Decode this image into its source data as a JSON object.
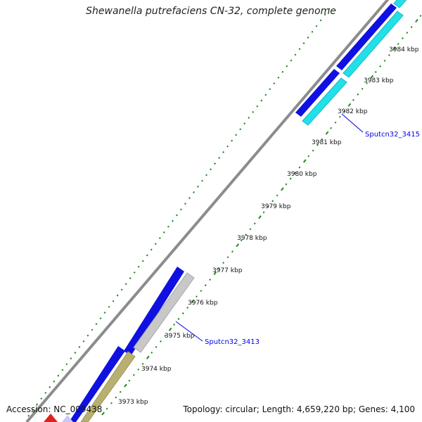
{
  "title": "Shewanella putrefaciens CN-32, complete genome",
  "accession": "Accession: NC_009438",
  "summary": "Topology: circular; Length: 4,659,220 bp; Genes: 4,100",
  "scale": {
    "unit": "kbp",
    "labeled_kbp": [
      3973,
      3974,
      3975,
      3976,
      3977,
      3978,
      3979,
      3980,
      3981,
      3982,
      3983,
      3984
    ]
  },
  "gene_labels": [
    {
      "text": "Sputcn32_3415",
      "color": "#0000ee"
    },
    {
      "text": "Sputcn32_3413",
      "color": "#0000ee"
    }
  ],
  "colors": {
    "backbone": "#8c8c8c",
    "forward_cds": "#1010e0",
    "reverse_cds_cyan": "#22e0e8",
    "reverse_cds_gray": "#c8c8c8",
    "reverse_cds_khaki": "#b8b070",
    "ticks": "#1f8a1f",
    "label_line": "#0000ee",
    "partial_red": "#e02020",
    "partial_lavender": "#c8c8ff"
  }
}
